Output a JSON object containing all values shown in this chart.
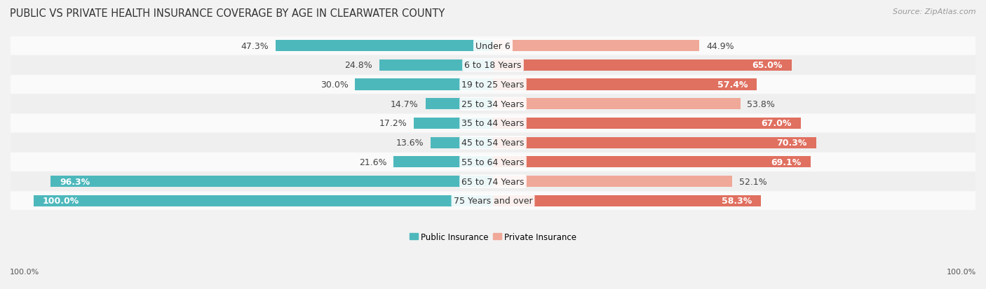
{
  "title": "PUBLIC VS PRIVATE HEALTH INSURANCE COVERAGE BY AGE IN CLEARWATER COUNTY",
  "source": "Source: ZipAtlas.com",
  "categories": [
    "Under 6",
    "6 to 18 Years",
    "19 to 25 Years",
    "25 to 34 Years",
    "35 to 44 Years",
    "45 to 54 Years",
    "55 to 64 Years",
    "65 to 74 Years",
    "75 Years and over"
  ],
  "public_values": [
    47.3,
    24.8,
    30.0,
    14.7,
    17.2,
    13.6,
    21.6,
    96.3,
    100.0
  ],
  "private_values": [
    44.9,
    65.0,
    57.4,
    53.8,
    67.0,
    70.3,
    69.1,
    52.1,
    58.3
  ],
  "public_color": "#4db8bc",
  "private_color_light": "#f0a898",
  "private_color_dark": "#e07060",
  "bg_color": "#f2f2f2",
  "row_bg_light": "#fafafa",
  "row_bg_dark": "#efefef",
  "bar_height": 0.58,
  "label_fontsize": 9.0,
  "title_fontsize": 10.5,
  "source_fontsize": 8.0,
  "legend_fontsize": 8.5,
  "axis_label_fontsize": 8.0,
  "max_val": 100.0,
  "private_dark_threshold": 55.0,
  "public_inside_threshold": 50.0
}
